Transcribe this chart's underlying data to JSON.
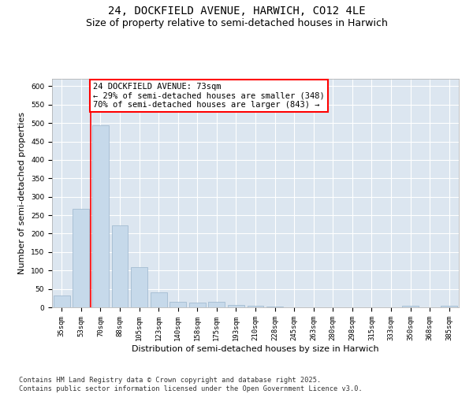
{
  "title_line1": "24, DOCKFIELD AVENUE, HARWICH, CO12 4LE",
  "title_line2": "Size of property relative to semi-detached houses in Harwich",
  "xlabel": "Distribution of semi-detached houses by size in Harwich",
  "ylabel": "Number of semi-detached properties",
  "categories": [
    "35sqm",
    "53sqm",
    "70sqm",
    "88sqm",
    "105sqm",
    "123sqm",
    "140sqm",
    "158sqm",
    "175sqm",
    "193sqm",
    "210sqm",
    "228sqm",
    "245sqm",
    "263sqm",
    "280sqm",
    "298sqm",
    "315sqm",
    "333sqm",
    "350sqm",
    "368sqm",
    "385sqm"
  ],
  "values": [
    33,
    267,
    493,
    223,
    108,
    40,
    14,
    13,
    14,
    7,
    5,
    2,
    1,
    1,
    0,
    0,
    0,
    0,
    5,
    0,
    4
  ],
  "bar_color": "#c6d9ea",
  "bar_edge_color": "#9ab4cc",
  "vline_index": 2,
  "vline_color": "red",
  "annotation_line1": "24 DOCKFIELD AVENUE: 73sqm",
  "annotation_line2": "← 29% of semi-detached houses are smaller (348)",
  "annotation_line3": "70% of semi-detached houses are larger (843) →",
  "ylim": [
    0,
    620
  ],
  "yticks": [
    0,
    50,
    100,
    150,
    200,
    250,
    300,
    350,
    400,
    450,
    500,
    550,
    600
  ],
  "background_color": "#dce6f0",
  "grid_color": "white",
  "footer_line1": "Contains HM Land Registry data © Crown copyright and database right 2025.",
  "footer_line2": "Contains public sector information licensed under the Open Government Licence v3.0.",
  "title_fontsize": 10,
  "subtitle_fontsize": 9,
  "axis_label_fontsize": 8,
  "tick_fontsize": 6.5,
  "annotation_fontsize": 7.5,
  "footer_fontsize": 6.2
}
